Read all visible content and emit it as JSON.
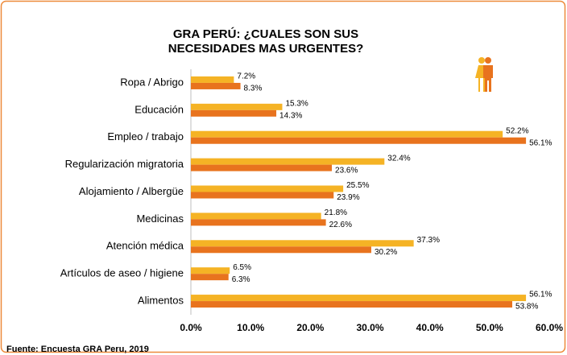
{
  "chart_data": {
    "type": "bar",
    "orientation": "horizontal",
    "title": "GRA PERÚ: ¿CUALES SON SUS NECESIDADES MAS URGENTES?",
    "source": "Fuente: Encuesta GRA Peru, 2019",
    "categories": [
      "Ropa / Abrigo",
      "Educación",
      "Empleo / trabajo",
      "Regularización migratoria",
      "Alojamiento / Albergüe",
      "Medicinas",
      "Atención médica",
      "Artículos de aseo / higiene",
      "Alimentos"
    ],
    "series": [
      {
        "color": "#f5b325",
        "values": [
          7.2,
          15.3,
          52.2,
          32.4,
          25.5,
          21.8,
          37.3,
          6.5,
          56.1
        ],
        "value_labels": [
          "7.2%",
          "15.3%",
          "52.2%",
          "32.4%",
          "25.5%",
          "21.8%",
          "37.3%",
          "6.5%",
          "56.1%"
        ]
      },
      {
        "color": "#e8731e",
        "values": [
          8.3,
          14.3,
          56.1,
          23.6,
          23.9,
          22.6,
          30.2,
          6.3,
          53.8
        ],
        "value_labels": [
          "8.3%",
          "14.3%",
          "56.1%",
          "23.6%",
          "23.9%",
          "22.6%",
          "30.2%",
          "6.3%",
          "53.8%"
        ]
      }
    ],
    "xlim": [
      0,
      60
    ],
    "xticks": [
      {
        "value": 0,
        "label": "0.0%"
      },
      {
        "value": 10,
        "label": "10.0%"
      },
      {
        "value": 20,
        "label": "20.0%"
      },
      {
        "value": 30,
        "label": "30.0%"
      },
      {
        "value": 40,
        "label": "40.0%"
      },
      {
        "value": 50,
        "label": "50.0%"
      },
      {
        "value": 60,
        "label": "60.0%"
      }
    ]
  }
}
